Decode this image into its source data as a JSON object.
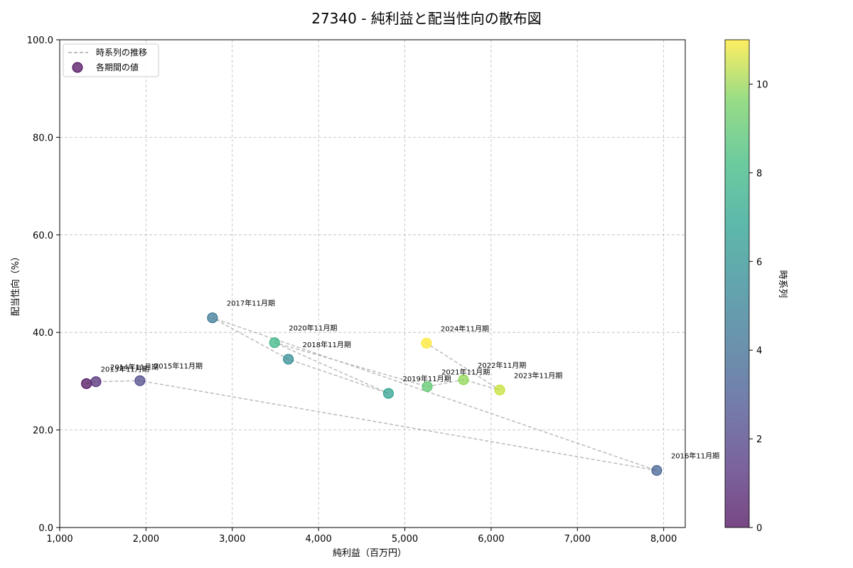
{
  "chart_data": {
    "type": "scatter",
    "title": "27340 - 純利益と配当性向の散布図",
    "xlabel": "純利益（百万円）",
    "ylabel": "配当性向（%）",
    "xlim": [
      1000,
      8250
    ],
    "ylim": [
      0,
      100
    ],
    "grid": true,
    "x_ticks": [
      1000,
      2000,
      3000,
      4000,
      5000,
      6000,
      7000,
      8000
    ],
    "x_tick_labels": [
      "1,000",
      "2,000",
      "3,000",
      "4,000",
      "5,000",
      "6,000",
      "7,000",
      "8,000"
    ],
    "y_ticks": [
      0,
      20,
      40,
      60,
      80,
      100
    ],
    "y_tick_labels": [
      "0.0",
      "20.0",
      "40.0",
      "60.0",
      "80.0",
      "100.0"
    ],
    "legend": {
      "placement": "top-left",
      "entries": [
        {
          "label": "時系列の推移",
          "kind": "line"
        },
        {
          "label": "各期間の値",
          "kind": "marker"
        }
      ]
    },
    "colorbar": {
      "label": "時系列",
      "range": [
        0,
        11
      ],
      "ticks": [
        0,
        2,
        4,
        6,
        8,
        10
      ],
      "tick_labels": [
        "0",
        "2",
        "4",
        "6",
        "8",
        "10"
      ]
    },
    "points": [
      {
        "period": "2013年11月期",
        "x": 1310,
        "y": 29.5,
        "t": 0
      },
      {
        "period": "2014年11月期",
        "x": 1420,
        "y": 29.9,
        "t": 1
      },
      {
        "period": "2015年11月期",
        "x": 1930,
        "y": 30.1,
        "t": 2
      },
      {
        "period": "2016年11月期",
        "x": 7920,
        "y": 11.7,
        "t": 3
      },
      {
        "period": "2017年11月期",
        "x": 2770,
        "y": 43.0,
        "t": 4
      },
      {
        "period": "2018年11月期",
        "x": 3650,
        "y": 34.5,
        "t": 5
      },
      {
        "period": "2019年11月期",
        "x": 4810,
        "y": 27.5,
        "t": 6
      },
      {
        "period": "2020年11月期",
        "x": 3490,
        "y": 37.9,
        "t": 7
      },
      {
        "period": "2021年11月期",
        "x": 5260,
        "y": 28.9,
        "t": 8
      },
      {
        "period": "2022年11月期",
        "x": 5680,
        "y": 30.3,
        "t": 9
      },
      {
        "period": "2023年11月期",
        "x": 6100,
        "y": 28.2,
        "t": 10
      },
      {
        "period": "2024年11月期",
        "x": 5250,
        "y": 37.8,
        "t": 11
      }
    ]
  }
}
